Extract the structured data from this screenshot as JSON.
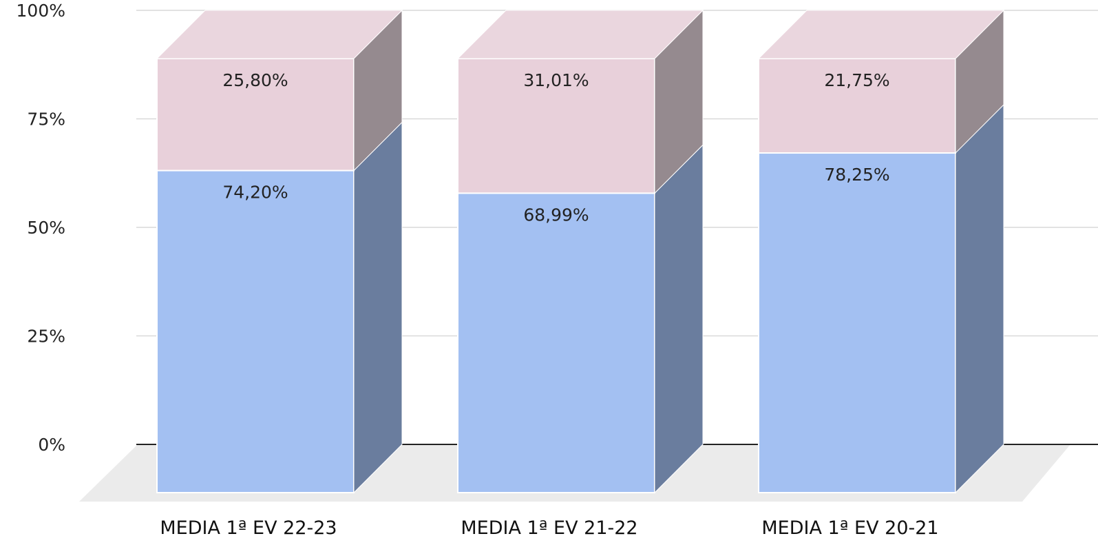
{
  "chart_data": {
    "type": "bar",
    "stacked": true,
    "three_d": true,
    "categories": [
      "MEDIA 1ª EV 22-23",
      "MEDIA 1ª EV 21-22",
      "MEDIA 1ª EV 20-21"
    ],
    "series": [
      {
        "values": [
          74.2,
          68.99,
          78.25
        ],
        "labels": [
          "74,20%",
          "68,99%",
          "78,25%"
        ],
        "color": "#a3c0f2",
        "side_color": "#6a7d9e"
      },
      {
        "values": [
          25.8,
          31.01,
          21.75
        ],
        "labels": [
          "25,80%",
          "31,01%",
          "21,75%"
        ],
        "color": "#e8d0da",
        "side_color": "#958a8f",
        "top_color": "#ead6de"
      }
    ],
    "y_ticks": [
      "0%",
      "25%",
      "50%",
      "75%",
      "100%"
    ],
    "ylim": [
      0,
      100
    ],
    "grid": true,
    "legend": "none",
    "colors": {
      "grid": "#d9d9d9",
      "baseline": "#222222",
      "floor": "#ebebeb"
    }
  }
}
